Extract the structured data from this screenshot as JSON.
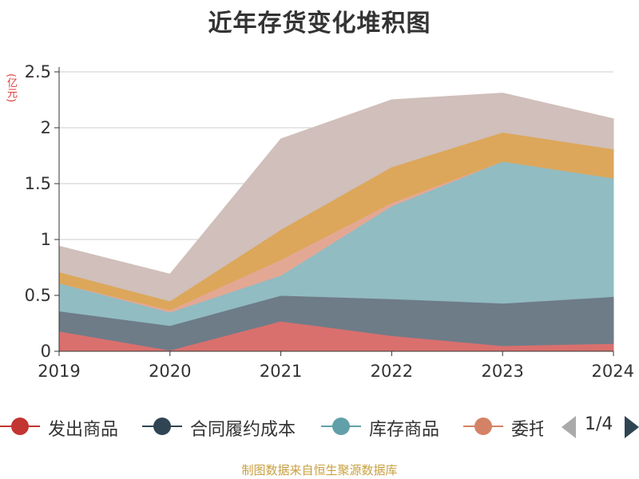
{
  "title": "近年存货变化堆积图",
  "unit": "(亿元)",
  "source": "制图数据来自恒生聚源数据库",
  "pager": {
    "text": "1/4",
    "prev_icon": "triangle-left-icon",
    "next_icon": "triangle-right-icon"
  },
  "legend": [
    {
      "label": "发出商品",
      "color": "#c23531"
    },
    {
      "label": "合同履约成本",
      "color": "#2f4554"
    },
    {
      "label": "库存商品",
      "color": "#61a0a8"
    },
    {
      "label": "委托",
      "color": "#d48265"
    }
  ],
  "chart_data": {
    "type": "area",
    "stacked": true,
    "categories": [
      "2019",
      "2020",
      "2021",
      "2022",
      "2023",
      "2024"
    ],
    "ylim": [
      0,
      2.5
    ],
    "yticks": [
      "0",
      "0.5",
      "1",
      "1.5",
      "2",
      "2.5"
    ],
    "grid": true,
    "legend_position": "bottom",
    "series": [
      {
        "name": "发出商品",
        "color": "#d9706e",
        "values": [
          0.18,
          0.01,
          0.27,
          0.14,
          0.05,
          0.07
        ]
      },
      {
        "name": "合同履约成本",
        "color": "#6e7c88",
        "values": [
          0.18,
          0.22,
          0.23,
          0.33,
          0.38,
          0.42
        ]
      },
      {
        "name": "库存商品",
        "color": "#91bcc2",
        "values": [
          0.25,
          0.12,
          0.18,
          0.83,
          1.27,
          1.06
        ]
      },
      {
        "name": "委托",
        "color": "#e3a894",
        "values": [
          0.0,
          0.02,
          0.14,
          0.03,
          0.0,
          0.0
        ]
      },
      {
        "name": "",
        "color": "#dca75a",
        "values": [
          0.1,
          0.08,
          0.27,
          0.32,
          0.26,
          0.26
        ]
      },
      {
        "name": "",
        "color": "#d0bfba",
        "values": [
          0.23,
          0.24,
          0.81,
          0.6,
          0.35,
          0.27
        ]
      }
    ]
  }
}
